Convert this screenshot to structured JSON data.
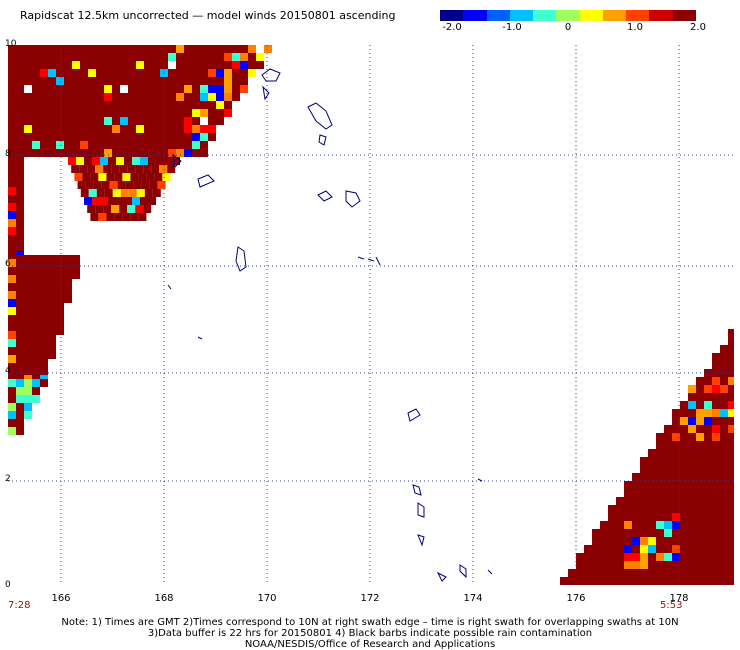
{
  "title": "Rapidscat 12.5km uncorrected — model winds 20150801 ascending",
  "colorbar": {
    "labels": [
      "-2.0",
      "-1.0",
      "0",
      "1.0",
      "2.0"
    ],
    "colors": [
      "#00008b",
      "#0000ff",
      "#0060ff",
      "#00c0ff",
      "#40ffd0",
      "#a0ff60",
      "#ffff00",
      "#ffa000",
      "#ff4000",
      "#d00000",
      "#8b0000"
    ]
  },
  "axes": {
    "y_labels": [
      "10",
      "8",
      "6",
      "4",
      "2",
      "0"
    ],
    "x_labels": [
      "166",
      "168",
      "170",
      "172",
      "174",
      "176",
      "178"
    ]
  },
  "times": {
    "left": "7:28",
    "right": "5:53"
  },
  "notes": {
    "line1": "Note: 1) Times are GMT 2)Times correspond to 10N at right swath edge – time is right swath for overlapping swaths at 10N",
    "line2": "3)Data buffer is 22 hrs for 20150801 4) Black barbs indicate possible rain contamination",
    "line3": "NOAA/NESDIS/Office of Research and Applications"
  }
}
